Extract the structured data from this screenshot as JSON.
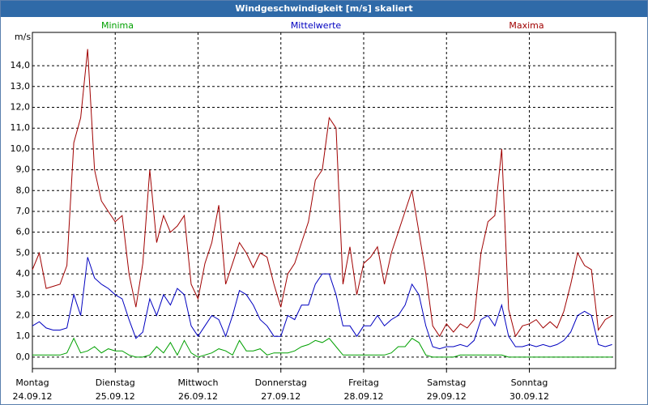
{
  "title_bar": "Windgeschwindigkeit [m/s] skaliert",
  "chart_data": {
    "type": "line",
    "y_unit": "m/s",
    "x": [
      0,
      2,
      4,
      6,
      8,
      10,
      12,
      14,
      16,
      18,
      20,
      22,
      24,
      26,
      28,
      30,
      32,
      34,
      36,
      38,
      40,
      42,
      44,
      46,
      48,
      50,
      52,
      54,
      56,
      58,
      60,
      62,
      64,
      66,
      68,
      70,
      72,
      74,
      76,
      78,
      80,
      82,
      84,
      86,
      88,
      90,
      92,
      94,
      96,
      98,
      100,
      102,
      104,
      106,
      108,
      110,
      112,
      114,
      116,
      118,
      120,
      122,
      124,
      126,
      128,
      130,
      132,
      134,
      136,
      138,
      140,
      142,
      144,
      146,
      148,
      150,
      152,
      154,
      156,
      158,
      160,
      162,
      164,
      166,
      168
    ],
    "xlim": [
      0,
      169
    ],
    "xticks": [
      {
        "value": 0,
        "label": "Montag"
      },
      {
        "value": 24,
        "label": "Dienstag"
      },
      {
        "value": 48,
        "label": "Mittwoch"
      },
      {
        "value": 72,
        "label": "Donnerstag"
      },
      {
        "value": 96,
        "label": "Freitag"
      },
      {
        "value": 120,
        "label": "Samstag"
      },
      {
        "value": 144,
        "label": "Sonntag"
      }
    ],
    "xtick_dates": [
      "24.09.12",
      "25.09.12",
      "26.09.12",
      "27.09.12",
      "28.09.12",
      "29.09.12",
      "30.09.12"
    ],
    "ylim": [
      -0.55,
      15.6
    ],
    "yticks": [
      {
        "value": 0,
        "label": "0,0"
      },
      {
        "value": 1,
        "label": "1,0"
      },
      {
        "value": 2,
        "label": "2,0"
      },
      {
        "value": 3,
        "label": "3,0"
      },
      {
        "value": 4,
        "label": "4,0"
      },
      {
        "value": 5,
        "label": "5,0"
      },
      {
        "value": 6,
        "label": "6,0"
      },
      {
        "value": 7,
        "label": "7,0"
      },
      {
        "value": 8,
        "label": "8,0"
      },
      {
        "value": 9,
        "label": "9,0"
      },
      {
        "value": 10,
        "label": "10,0"
      },
      {
        "value": 11,
        "label": "11,0"
      },
      {
        "value": 12,
        "label": "12,0"
      },
      {
        "value": 13,
        "label": "13,0"
      },
      {
        "value": 14,
        "label": "14,0"
      }
    ],
    "grid": true,
    "series": [
      {
        "name": "Minima",
        "color": "#00a000",
        "values": [
          0.1,
          0.1,
          0.1,
          0.1,
          0.1,
          0.2,
          0.9,
          0.2,
          0.3,
          0.5,
          0.2,
          0.4,
          0.3,
          0.3,
          0.1,
          0.0,
          0.0,
          0.1,
          0.5,
          0.2,
          0.7,
          0.1,
          0.8,
          0.2,
          0.0,
          0.1,
          0.2,
          0.4,
          0.3,
          0.1,
          0.8,
          0.3,
          0.3,
          0.4,
          0.1,
          0.2,
          0.2,
          0.2,
          0.3,
          0.5,
          0.6,
          0.8,
          0.7,
          0.9,
          0.5,
          0.1,
          0.1,
          0.1,
          0.1,
          0.1,
          0.1,
          0.1,
          0.2,
          0.5,
          0.5,
          0.9,
          0.7,
          0.1,
          0.0,
          0.0,
          0.0,
          0.0,
          0.1,
          0.1,
          0.1,
          0.1,
          0.1,
          0.1,
          0.1,
          0.0,
          0.0,
          0.0,
          0.0,
          0.0,
          0.0,
          0.0,
          0.0,
          0.0,
          0.0,
          0.0,
          0.0,
          0.0,
          0.0,
          0.0,
          0.0
        ]
      },
      {
        "name": "Mittelwerte",
        "color": "#0000c0",
        "values": [
          1.5,
          1.7,
          1.4,
          1.3,
          1.3,
          1.4,
          3.0,
          2.0,
          4.8,
          3.8,
          3.5,
          3.3,
          3.0,
          2.8,
          1.8,
          0.9,
          1.2,
          2.8,
          2.0,
          3.0,
          2.5,
          3.3,
          3.0,
          1.5,
          1.0,
          1.5,
          2.0,
          1.8,
          1.0,
          2.0,
          3.2,
          3.0,
          2.5,
          1.8,
          1.5,
          1.0,
          1.0,
          2.0,
          1.8,
          2.5,
          2.5,
          3.5,
          4.0,
          4.0,
          3.0,
          1.5,
          1.5,
          1.0,
          1.5,
          1.5,
          2.0,
          1.5,
          1.8,
          2.0,
          2.5,
          3.5,
          3.0,
          1.5,
          0.5,
          0.4,
          0.5,
          0.5,
          0.6,
          0.5,
          0.8,
          1.8,
          2.0,
          1.5,
          2.5,
          1.0,
          0.5,
          0.5,
          0.6,
          0.5,
          0.6,
          0.5,
          0.6,
          0.8,
          1.2,
          2.0,
          2.2,
          2.0,
          0.6,
          0.5,
          0.6
        ]
      },
      {
        "name": "Maxima",
        "color": "#a00000",
        "values": [
          4.2,
          5.0,
          3.3,
          3.4,
          3.5,
          4.4,
          10.3,
          11.5,
          14.8,
          9.0,
          7.5,
          7.0,
          6.5,
          6.8,
          4.0,
          2.4,
          4.5,
          9.0,
          5.5,
          6.8,
          6.0,
          6.3,
          6.8,
          3.5,
          2.8,
          4.5,
          5.5,
          7.3,
          3.5,
          4.5,
          5.5,
          5.0,
          4.3,
          5.0,
          4.8,
          3.5,
          2.4,
          4.0,
          4.5,
          5.5,
          6.5,
          8.5,
          9.0,
          11.5,
          11.0,
          3.5,
          5.3,
          3.0,
          4.5,
          4.8,
          5.3,
          3.5,
          5.0,
          6.0,
          7.0,
          8.0,
          6.0,
          4.0,
          1.5,
          1.0,
          1.6,
          1.2,
          1.6,
          1.4,
          1.8,
          5.0,
          6.5,
          6.8,
          10.0,
          2.3,
          1.0,
          1.5,
          1.6,
          1.8,
          1.4,
          1.7,
          1.4,
          2.2,
          3.5,
          5.0,
          4.4,
          4.2,
          1.3,
          1.8,
          2.0
        ]
      }
    ]
  }
}
